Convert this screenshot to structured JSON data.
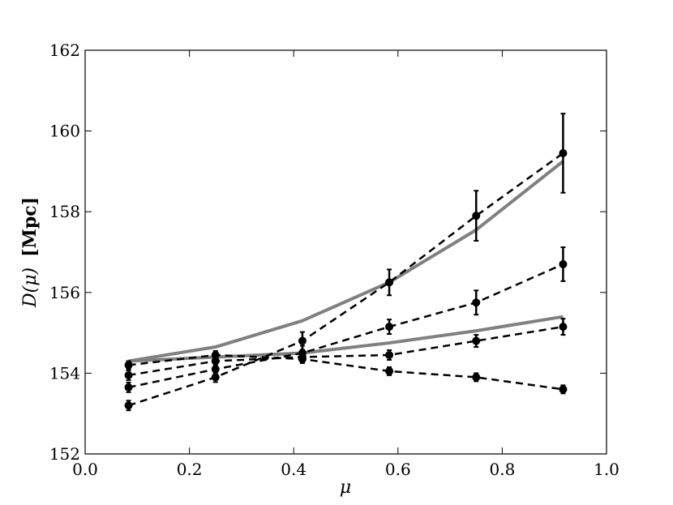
{
  "chart_data": {
    "type": "line",
    "title": "",
    "xlabel": "μ",
    "ylabel_main": "D(μ)",
    "ylabel_unit": "[Mpc]",
    "xlim": [
      0.0,
      1.0
    ],
    "ylim": [
      152,
      162
    ],
    "xticks": [
      "0.0",
      "0.2",
      "0.4",
      "0.6",
      "0.8",
      "1.0"
    ],
    "yticks": [
      "152",
      "154",
      "156",
      "158",
      "160",
      "162"
    ],
    "grid": false,
    "legend": "none",
    "x": [
      0.0833,
      0.25,
      0.4167,
      0.5833,
      0.75,
      0.9167
    ],
    "dashed_series": [
      {
        "values": [
          153.2,
          153.9,
          154.8,
          156.25,
          157.9,
          159.45
        ],
        "errors": [
          0.12,
          0.12,
          0.22,
          0.32,
          0.62,
          0.98
        ]
      },
      {
        "values": [
          153.65,
          154.1,
          154.5,
          155.15,
          155.75,
          156.7
        ],
        "errors": [
          0.12,
          0.12,
          0.18,
          0.18,
          0.3,
          0.42
        ]
      },
      {
        "values": [
          153.95,
          154.3,
          154.4,
          154.45,
          154.8,
          155.15
        ],
        "errors": [
          0.12,
          0.12,
          0.12,
          0.12,
          0.15,
          0.2
        ]
      },
      {
        "values": [
          154.2,
          154.45,
          154.35,
          154.05,
          153.9,
          153.6
        ],
        "errors": [
          0.1,
          0.1,
          0.1,
          0.1,
          0.1,
          0.1
        ]
      }
    ],
    "solid_series": [
      {
        "values": [
          154.3,
          154.65,
          155.3,
          156.25,
          157.55,
          159.25
        ]
      },
      {
        "values": [
          154.3,
          154.4,
          154.5,
          154.75,
          155.05,
          155.4
        ]
      }
    ],
    "colors": {
      "dashed": "#000000",
      "solid": "#808080",
      "marker": "#000000",
      "axis": "#000000"
    }
  }
}
